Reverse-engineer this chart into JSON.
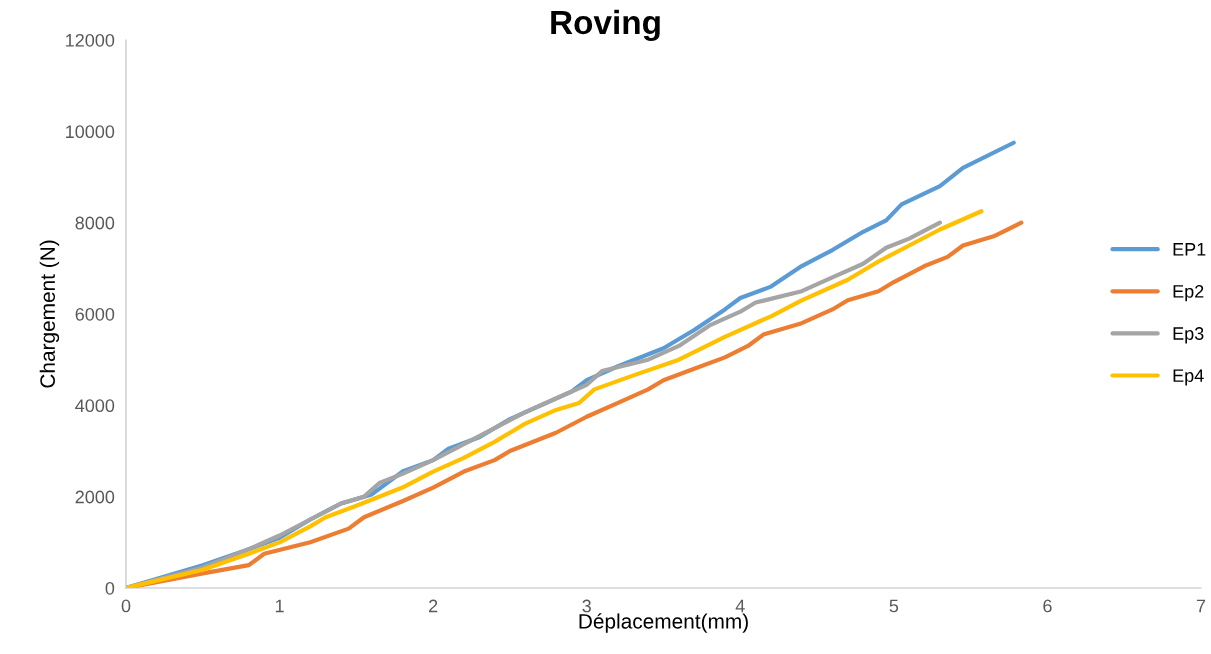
{
  "chart_data": {
    "type": "line",
    "title": "Roving",
    "xlabel": "Déplacement(mm)",
    "ylabel": "Chargement (N)",
    "xlim": [
      0,
      7
    ],
    "xticks": [
      0,
      1,
      2,
      3,
      4,
      5,
      6,
      7
    ],
    "ylim": [
      0,
      12000
    ],
    "yticks": [
      0,
      2000,
      4000,
      6000,
      8000,
      10000,
      12000
    ],
    "grid": false,
    "legend": "right",
    "marker": "none",
    "line_style": "solid",
    "series": [
      {
        "name": "EP1",
        "color": "#5b9bd5",
        "x": [
          0,
          0.5,
          0.8,
          1,
          1.2,
          1.4,
          1.6,
          1.7,
          1.8,
          2,
          2.1,
          2.3,
          2.5,
          2.7,
          2.9,
          3,
          3.2,
          3.5,
          3.7,
          3.9,
          4,
          4.2,
          4.4,
          4.6,
          4.8,
          4.95,
          5.05,
          5.3,
          5.45,
          5.78
        ],
        "values": [
          0,
          500,
          850,
          1100,
          1500,
          1850,
          2050,
          2300,
          2550,
          2800,
          3050,
          3300,
          3700,
          4000,
          4300,
          4550,
          4850,
          5250,
          5650,
          6100,
          6350,
          6600,
          7050,
          7400,
          7800,
          8050,
          8400,
          8800,
          9200,
          9750
        ]
      },
      {
        "name": "Ep2",
        "color": "#ed7d31",
        "x": [
          0,
          0.5,
          0.8,
          0.9,
          1.2,
          1.45,
          1.55,
          1.8,
          2,
          2.2,
          2.4,
          2.5,
          2.8,
          3,
          3.2,
          3.4,
          3.5,
          3.7,
          3.9,
          4.05,
          4.15,
          4.4,
          4.6,
          4.7,
          4.9,
          5,
          5.2,
          5.35,
          5.45,
          5.65,
          5.83
        ],
        "values": [
          0,
          320,
          500,
          750,
          1000,
          1300,
          1550,
          1900,
          2200,
          2550,
          2800,
          3000,
          3400,
          3750,
          4050,
          4350,
          4550,
          4800,
          5050,
          5300,
          5550,
          5800,
          6100,
          6300,
          6500,
          6700,
          7050,
          7250,
          7500,
          7700,
          8000
        ]
      },
      {
        "name": "Ep3",
        "color": "#a5a5a5",
        "x": [
          0,
          0.5,
          0.8,
          1,
          1.2,
          1.4,
          1.55,
          1.65,
          1.8,
          2,
          2.2,
          2.4,
          2.6,
          2.8,
          3,
          3.1,
          3.4,
          3.6,
          3.8,
          4,
          4.1,
          4.4,
          4.6,
          4.8,
          4.95,
          5.1,
          5.3
        ],
        "values": [
          0,
          450,
          850,
          1150,
          1500,
          1850,
          2000,
          2300,
          2500,
          2800,
          3150,
          3500,
          3850,
          4150,
          4450,
          4750,
          5000,
          5300,
          5750,
          6050,
          6250,
          6500,
          6800,
          7100,
          7450,
          7650,
          8000
        ]
      },
      {
        "name": "Ep4",
        "color": "#ffc000",
        "x": [
          0,
          0.5,
          0.8,
          1,
          1.2,
          1.3,
          1.5,
          1.8,
          2,
          2.2,
          2.4,
          2.6,
          2.8,
          2.95,
          3.05,
          3.3,
          3.6,
          3.9,
          4.2,
          4.4,
          4.7,
          4.9,
          5.1,
          5.3,
          5.57
        ],
        "values": [
          0,
          400,
          750,
          1000,
          1350,
          1550,
          1800,
          2200,
          2550,
          2850,
          3200,
          3600,
          3900,
          4050,
          4350,
          4650,
          5000,
          5500,
          5950,
          6300,
          6750,
          7150,
          7500,
          7850,
          8250
        ]
      }
    ]
  }
}
